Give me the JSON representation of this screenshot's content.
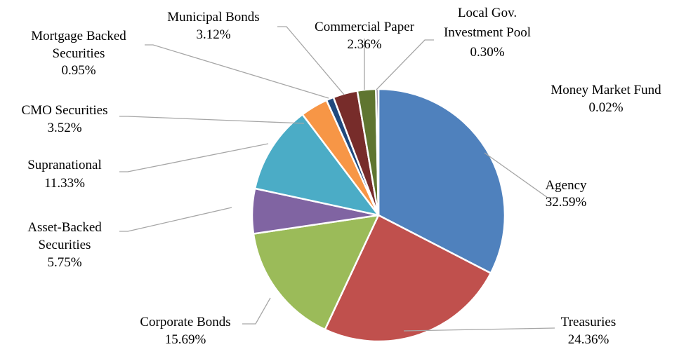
{
  "chart_data": {
    "type": "pie",
    "slices": [
      {
        "label": "Agency",
        "value": 32.59,
        "value_label": "32.59%",
        "color": "#4f81bd"
      },
      {
        "label": "Treasuries",
        "value": 24.36,
        "value_label": "24.36%",
        "color": "#c0504d"
      },
      {
        "label": "Corporate Bonds",
        "value": 15.69,
        "value_label": "15.69%",
        "color": "#9bbb59"
      },
      {
        "label": "Asset-Backed Securities",
        "value": 5.75,
        "value_label": "5.75%",
        "color": "#8064a2"
      },
      {
        "label": "Supranational",
        "value": 11.33,
        "value_label": "11.33%",
        "color": "#4bacc6"
      },
      {
        "label": "CMO Securities",
        "value": 3.52,
        "value_label": "3.52%",
        "color": "#f79646"
      },
      {
        "label": "Mortgage Backed Securities",
        "value": 0.95,
        "value_label": "0.95%",
        "color": "#1f497d"
      },
      {
        "label": "Municipal Bonds",
        "value": 3.12,
        "value_label": "3.12%",
        "color": "#772c2a"
      },
      {
        "label": "Commercial Paper",
        "value": 2.36,
        "value_label": "2.36%",
        "color": "#5f7530"
      },
      {
        "label": "Local Gov. Investment Pool",
        "value": 0.3,
        "value_label": "0.30%",
        "color": "#4d3b62"
      },
      {
        "label": "Money Market Fund",
        "value": 0.02,
        "value_label": "0.02%",
        "color": "#276a7c"
      }
    ]
  }
}
